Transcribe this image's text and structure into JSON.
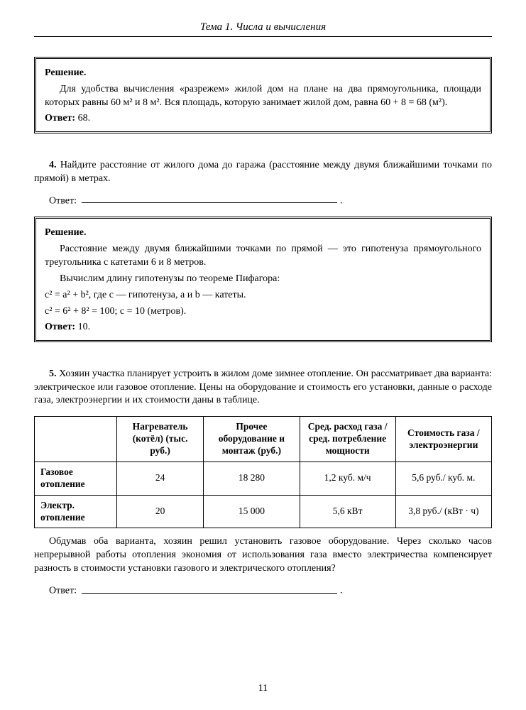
{
  "header": {
    "title": "Тема 1. Числа и вычисления"
  },
  "solution1": {
    "label": "Решение.",
    "body": "Для удобства вычисления «разрежем» жилой дом на плане на два прямоугольника, площади которых равны 60 м² и 8 м². Вся площадь, которую занимает жилой дом, равна 60 + 8 = 68 (м²).",
    "answer_label": "Ответ:",
    "answer_value": "68."
  },
  "task4": {
    "number": "4.",
    "text": "Найдите расстояние от жилого дома до гаража (расстояние между двумя ближайшими точками по прямой) в метрах.",
    "answer_label": "Ответ:"
  },
  "solution4": {
    "label": "Решение.",
    "p1": "Расстояние между двумя ближайшими точками по прямой — это гипотенуза прямоугольного треугольника с катетами 6 и 8 метров.",
    "p2": "Вычислим длину гипотенузы по теореме Пифагора:",
    "eq1": "c² = a² + b², где c — гипотенуза, a и b — катеты.",
    "eq2": "c² = 6² + 8² = 100; c = 10 (метров).",
    "answer_label": "Ответ:",
    "answer_value": "10."
  },
  "task5": {
    "number": "5.",
    "text": "Хозяин участка планирует устроить в жилом доме зимнее отопление. Он рассматривает два варианта: электрическое или газовое отопление. Цены на оборудование и стоимость его установки, данные о расходе газа, электроэнергии и их стоимости даны в таблице.",
    "followup": "Обдумав оба варианта, хозяин решил установить газовое оборудование. Через сколько часов непрерывной работы отопления экономия от использования газа вместо электричества компенсирует разность в стоимости установки газового и электрического отопления?",
    "answer_label": "Ответ:"
  },
  "table": {
    "columns": [
      "",
      "Нагреватель (котёл) (тыс. руб.)",
      "Прочее оборудование и монтаж (руб.)",
      "Сред. расход газа / сред. потребление мощности",
      "Стоимость газа / электроэнергии"
    ],
    "rows": [
      {
        "head": "Газовое отопление",
        "c1": "24",
        "c2": "18 280",
        "c3": "1,2 куб. м/ч",
        "c4": "5,6 руб./ куб. м."
      },
      {
        "head": "Электр. отопление",
        "c1": "20",
        "c2": "15 000",
        "c3": "5,6 кВт",
        "c4": "3,8 руб./ (кВт · ч)"
      }
    ],
    "col_widths": [
      "18%",
      "19%",
      "21%",
      "21%",
      "21%"
    ]
  },
  "page_number": "11"
}
